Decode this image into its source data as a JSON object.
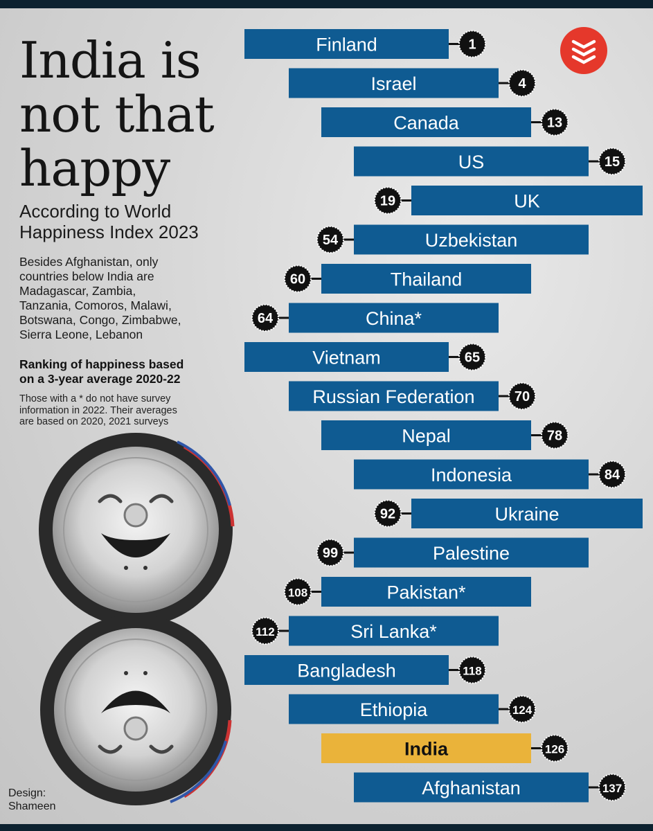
{
  "title_lines": [
    "India is",
    "not that",
    "happy"
  ],
  "subtitle_lines": [
    "According to World",
    "Happiness Index 2023"
  ],
  "note_lines": [
    "Besides Afghanistan, only",
    "countries below India are",
    "Madagascar, Zambia,",
    "Tanzania, Comoros, Malawi,",
    "Botswana, Congo, Zimbabwe,",
    "Sierra Leone, Lebanon"
  ],
  "ranking_heading_lines": [
    "Ranking of happiness based",
    "on a 3-year average 2020-22"
  ],
  "ranking_footnote_lines": [
    "Those with a * do not have survey",
    "information in 2022. Their averages",
    "are based on 2020, 2021 surveys"
  ],
  "credit_lines": [
    "Design:",
    "Shameen"
  ],
  "colors": {
    "bar": "#0f5b92",
    "highlight": "#eab33a",
    "badge": "#111111",
    "logo": "#e5382b"
  },
  "chart_data": {
    "type": "bar",
    "title": "India is not that happy",
    "subtitle": "According to World Happiness Index 2023",
    "categories": [
      "Finland",
      "Israel",
      "Canada",
      "US",
      "UK",
      "Uzbekistan",
      "Thailand",
      "China*",
      "Vietnam",
      "Russian Federation",
      "Nepal",
      "Indonesia",
      "Ukraine",
      "Palestine",
      "Pakistan*",
      "Sri Lanka*",
      "Bangladesh",
      "Ethiopia",
      "India",
      "Afghanistan"
    ],
    "values": [
      1,
      4,
      13,
      15,
      19,
      54,
      60,
      64,
      65,
      70,
      78,
      84,
      92,
      99,
      108,
      112,
      118,
      124,
      126,
      137
    ],
    "value_label": "Rank",
    "highlight": "India"
  }
}
